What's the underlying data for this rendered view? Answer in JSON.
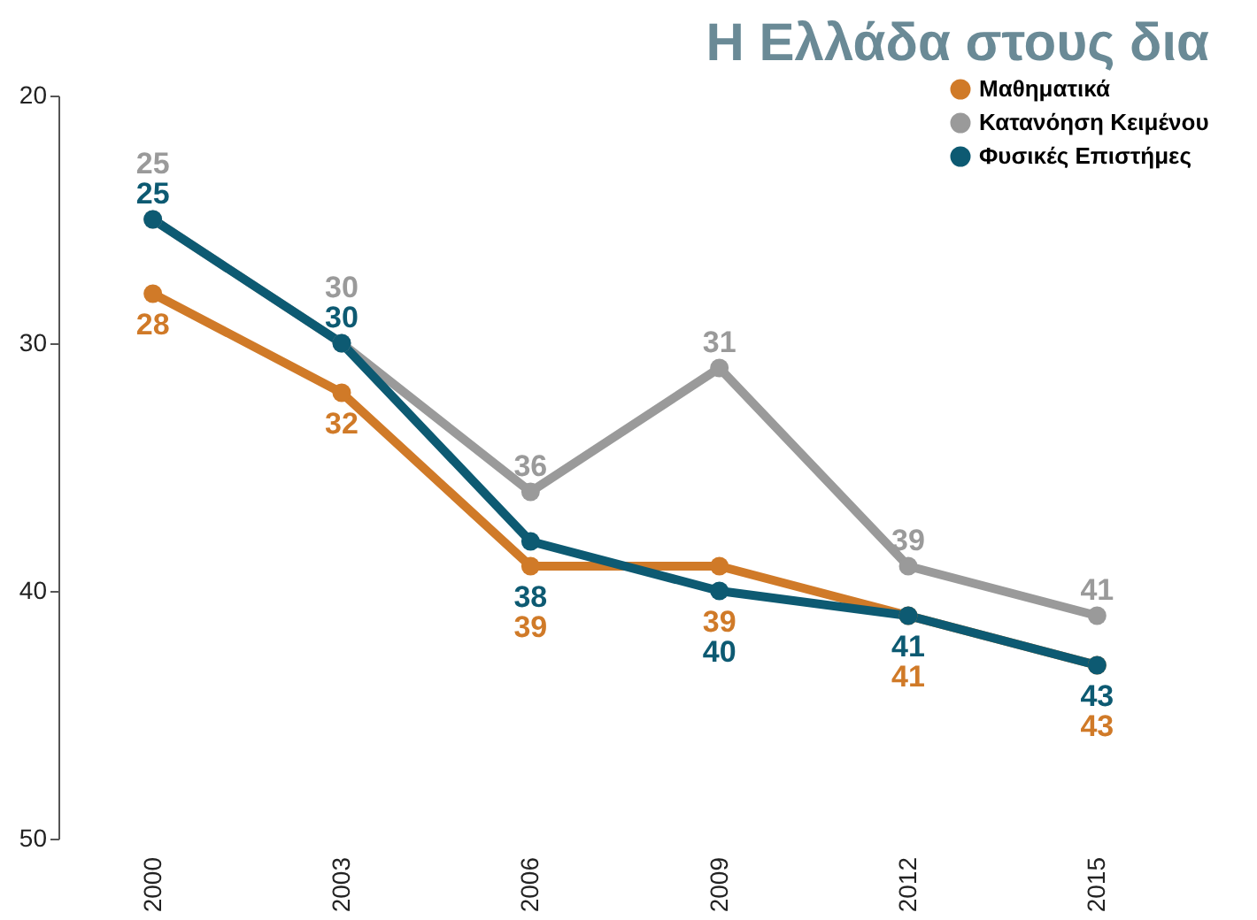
{
  "chart_data": {
    "type": "line",
    "title": "Η Ελλάδα στους δια",
    "categories": [
      "2000",
      "2003",
      "2006",
      "2009",
      "2012",
      "2015"
    ],
    "series": [
      {
        "name": "Μαθηματικά",
        "color": "#d07a28",
        "values": [
          28,
          32,
          39,
          39,
          41,
          43
        ]
      },
      {
        "name": "Κατανόηση Κειμένου",
        "color": "#9a9a9a",
        "values": [
          25,
          30,
          36,
          31,
          39,
          41
        ]
      },
      {
        "name": "Φυσικές Επιστήμες",
        "color": "#0d5a72",
        "values": [
          25,
          30,
          38,
          40,
          41,
          43
        ]
      }
    ],
    "ylim": [
      50,
      20
    ],
    "yticks": [
      20,
      30,
      40,
      50
    ],
    "grid": false,
    "legend": "top right",
    "marker": "circle",
    "line_style": "solid",
    "data_labels": true
  }
}
